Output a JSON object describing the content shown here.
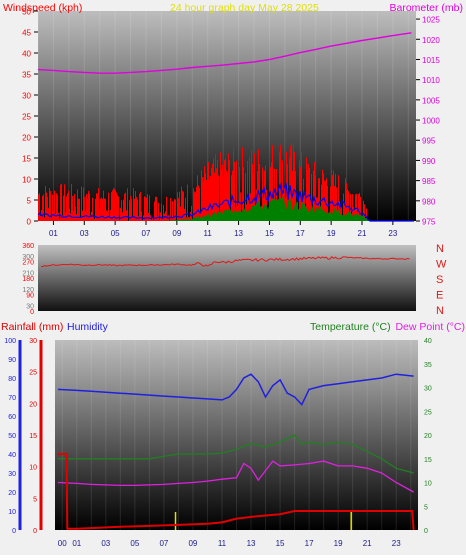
{
  "colors": {
    "windspeed": "#ff0000",
    "windavg": "#0000ff",
    "windgust_fill": "#008000",
    "barometer": "#e000e0",
    "title": "#e0e000",
    "winddir": "#e01818",
    "rainfall": "#e00000",
    "humidity": "#2020e0",
    "temperature": "#208020",
    "dewpoint": "#e020e0",
    "bg_dark": "#000000",
    "bg_light": "#bdbdbd"
  },
  "chart_data": [
    {
      "type": "bar",
      "name": "wind-baro",
      "title": "24 hour graph day   May 28 2025",
      "left_label": "Windspeed (kph)",
      "right_label": "Barometer (mb)",
      "x_ticks": [
        "01",
        "03",
        "05",
        "07",
        "09",
        "11",
        "13",
        "15",
        "17",
        "19",
        "21",
        "23"
      ],
      "left_ticks": [
        0,
        5,
        10,
        15,
        20,
        25,
        30,
        35,
        40,
        45,
        50
      ],
      "right_ticks": [
        975,
        980,
        985,
        990,
        995,
        1000,
        1005,
        1010,
        1015,
        1020,
        1025
      ],
      "left_range": [
        0,
        50
      ],
      "right_range": [
        975,
        1027
      ],
      "x_range": [
        0,
        24.5
      ],
      "barometer": {
        "x": [
          0,
          1,
          2,
          3,
          4,
          5,
          6,
          7,
          8,
          9,
          10,
          11,
          12,
          13,
          14,
          15,
          16,
          17,
          18,
          19,
          20,
          21,
          22,
          23,
          24.2
        ],
        "y": [
          1012.5,
          1012.3,
          1012,
          1011.8,
          1011.6,
          1011.6,
          1011.8,
          1012,
          1012.3,
          1012.6,
          1013,
          1013.3,
          1013.6,
          1014,
          1014.4,
          1015,
          1015.8,
          1016.7,
          1017.5,
          1018.3,
          1019,
          1019.7,
          1020.3,
          1020.9,
          1021.6
        ]
      },
      "wind_envelope": {
        "x": [
          0,
          2,
          4,
          6,
          8,
          10,
          11,
          12,
          13,
          14,
          15,
          15.8,
          16.5,
          17,
          18,
          19,
          20,
          21,
          21.5,
          24.2
        ],
        "max": [
          9,
          9,
          8,
          8,
          6,
          10,
          15,
          17,
          18,
          18,
          19,
          20,
          19,
          17,
          14,
          13,
          10,
          8,
          0,
          0
        ],
        "avg": [
          1.5,
          1.2,
          1,
          0.8,
          0.8,
          1.5,
          3,
          4,
          5,
          6,
          6.5,
          7,
          6.5,
          6,
          5,
          4.5,
          3.5,
          2,
          0,
          0
        ],
        "gust": [
          0,
          0,
          0,
          0,
          0,
          0.5,
          1.5,
          2,
          3,
          3.5,
          4,
          4.5,
          4,
          3.5,
          3,
          2.5,
          2,
          1,
          0,
          0
        ]
      }
    },
    {
      "type": "line",
      "name": "wind-direction",
      "left_ticks": [
        0,
        90,
        180,
        270,
        360
      ],
      "left_tick_labels": [
        "0",
        "90",
        "180",
        "270",
        "360"
      ],
      "extra_left_ticks": [
        30,
        120,
        210,
        300
      ],
      "extra_left_tick_labels": [
        "30",
        "120",
        "210",
        "300"
      ],
      "right_labels": [
        "N",
        "W",
        "S",
        "E",
        "N"
      ],
      "left_range": [
        0,
        360
      ],
      "x_range": [
        0,
        24.5
      ],
      "series": {
        "x": [
          0.2,
          1,
          2,
          3,
          4,
          5,
          6,
          7,
          8,
          9,
          10,
          10.5,
          11,
          11.5,
          12,
          13,
          14,
          15,
          16,
          17,
          18,
          19,
          20,
          21,
          22,
          23,
          24.2
        ],
        "y": [
          245,
          250,
          255,
          250,
          252,
          248,
          250,
          250,
          252,
          255,
          250,
          260,
          240,
          270,
          265,
          275,
          278,
          280,
          282,
          285,
          288,
          290,
          292,
          288,
          285,
          285,
          285
        ]
      }
    },
    {
      "type": "line",
      "name": "rain-hum-temp",
      "rain_label": "Rainfall (mm)",
      "hum_label": "Humidity",
      "temp_label": "Temperature (°C)",
      "dew_label": "Dew Point (°C)",
      "x_ticks": [
        "00",
        "01",
        "03",
        "05",
        "07",
        "09",
        "11",
        "13",
        "15",
        "17",
        "19",
        "21",
        "23"
      ],
      "hum_ticks": [
        0,
        10,
        20,
        30,
        40,
        50,
        60,
        70,
        80,
        90,
        100
      ],
      "rain_ticks": [
        0,
        5,
        10,
        15,
        20,
        25,
        30
      ],
      "temp_ticks": [
        0,
        5,
        10,
        15,
        20,
        25,
        30,
        35,
        40
      ],
      "hum_range": [
        0,
        100
      ],
      "rain_range": [
        0,
        30
      ],
      "temp_range": [
        0,
        40
      ],
      "x_range": [
        -0.5,
        24.5
      ],
      "humidity": {
        "x": [
          -0.3,
          1,
          2,
          3,
          4,
          5,
          6,
          7,
          8,
          9,
          10,
          11,
          11.5,
          12,
          12.5,
          13,
          13.5,
          14,
          14.5,
          15,
          15.5,
          16,
          16.5,
          17,
          18,
          19,
          20,
          21,
          22,
          23,
          24.2
        ],
        "y": [
          74,
          73.5,
          73,
          72.5,
          72,
          71.5,
          71,
          70.5,
          70,
          69.5,
          69,
          68.5,
          70,
          74,
          80,
          82,
          78,
          70,
          76,
          79,
          72,
          70,
          66,
          74,
          76,
          77,
          78,
          79,
          80,
          82,
          81
        ]
      },
      "temperature": {
        "x": [
          -0.3,
          1,
          2,
          3,
          4,
          5,
          6,
          7,
          8,
          9,
          10,
          11,
          12,
          13,
          14,
          15,
          16,
          16.5,
          17,
          18,
          19,
          20,
          21,
          22,
          23,
          24.2
        ],
        "y": [
          15,
          15,
          15,
          15,
          15,
          15,
          15,
          15.5,
          16,
          16,
          16,
          16.2,
          17,
          18.2,
          17.5,
          18.5,
          20,
          18,
          18.5,
          18,
          18.5,
          18,
          16.5,
          15,
          13,
          12
        ]
      },
      "dewpoint": {
        "x": [
          -0.3,
          1,
          2,
          3,
          4,
          5,
          6,
          7,
          8,
          9,
          10,
          11,
          12,
          12.5,
          13,
          13.5,
          14,
          14.5,
          15,
          16,
          17,
          18,
          19,
          20,
          21,
          22,
          23,
          24.2
        ],
        "y": [
          10,
          9.8,
          9.6,
          9.5,
          9.4,
          9.4,
          9.5,
          9.6,
          9.8,
          10,
          10.3,
          10.7,
          11,
          14,
          13,
          10.5,
          12.5,
          14.5,
          13.5,
          13.7,
          14,
          14.5,
          13.5,
          13.5,
          13,
          12,
          10,
          8
        ]
      },
      "rainfall": {
        "x": [
          -0.3,
          0.3,
          0.35,
          1,
          4,
          8,
          10,
          11,
          12,
          13.5,
          15,
          16,
          20,
          24,
          24.1,
          24.2
        ],
        "y": [
          12,
          12,
          0.2,
          0.2,
          0.5,
          0.8,
          1,
          1.2,
          1.8,
          2.2,
          2.5,
          3,
          3,
          3,
          3,
          0
        ]
      },
      "rain_rate_marks": [
        7.8,
        19.9
      ]
    }
  ]
}
